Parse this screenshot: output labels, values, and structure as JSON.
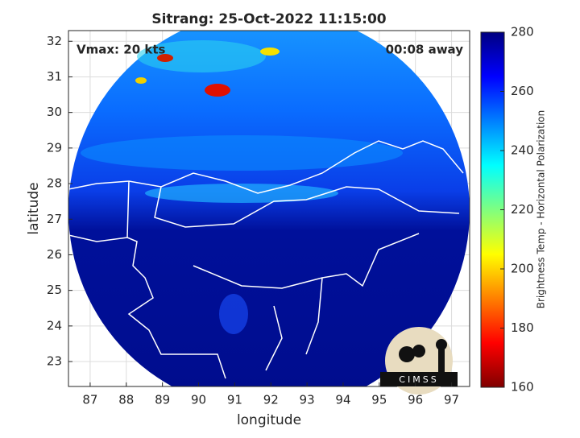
{
  "chart_data": {
    "type": "map",
    "title": "Sitrang: 25-Oct-2022 11:15:00",
    "annotations": [
      "Vmax: 20 kts",
      "00:08 away"
    ],
    "x_label": "longitude",
    "y_label": "latitude",
    "xlim": [
      86.4,
      97.5
    ],
    "ylim": [
      22.3,
      32.3
    ],
    "xticks": [
      87,
      88,
      89,
      90,
      91,
      92,
      93,
      94,
      95,
      96,
      97
    ],
    "yticks": [
      23,
      24,
      25,
      26,
      27,
      28,
      29,
      30,
      31,
      32
    ],
    "grid": true,
    "colorbar_label": "Brightness Temp - Horizontal Polarization",
    "clim": [
      160,
      280
    ],
    "cticks": [
      160,
      180,
      200,
      220,
      240,
      260,
      280
    ],
    "logo": "CIMSS"
  }
}
